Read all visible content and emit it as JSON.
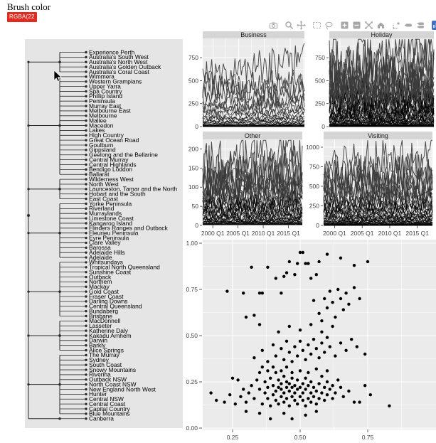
{
  "header": {
    "brush_label": "Brush color",
    "brush_value": "RGBA(22",
    "brush_color": "#e02b20"
  },
  "modebar": {
    "icon_color": "#a6a6a6",
    "logo_color": "#3d6fc9",
    "icons": [
      {
        "name": "camera",
        "title": "Download plot as png"
      },
      {
        "name": "zoom",
        "title": "Zoom"
      },
      {
        "name": "pan",
        "title": "Pan"
      },
      {
        "name": "box-select",
        "title": "Box Select"
      },
      {
        "name": "lasso-select",
        "title": "Lasso Select"
      },
      {
        "name": "zoom-in",
        "title": "Zoom in"
      },
      {
        "name": "zoom-out",
        "title": "Zoom out"
      },
      {
        "name": "autoscale",
        "title": "Autoscale"
      },
      {
        "name": "reset-axes",
        "title": "Reset axes"
      },
      {
        "name": "toggle-spikelines",
        "title": "Toggle Spike Lines"
      },
      {
        "name": "hover-closest",
        "title": "Show closest data on hover"
      },
      {
        "name": "hover-compare",
        "title": "Compare data on hover"
      },
      {
        "name": "plotly-logo",
        "title": "Produced with Plotly"
      }
    ]
  },
  "dendrogram": {
    "regions": [
      "Experience Perth",
      "Australia's South West",
      "Australia's North West",
      "Australia's Golden Outback",
      "Australia's Coral Coast",
      "Wimmera",
      "Western Grampians",
      "Upper Yarra",
      "Spa Country",
      "Phillip Island",
      "Peninsula",
      "Murray East",
      "Melbourne East",
      "Melbourne",
      "Mallee",
      "Macedon",
      "Lakes",
      "High Country",
      "Great Ocean Road",
      "Goulburn",
      "Gippsland",
      "Geelong and the Bellarine",
      "Central Murray",
      "Central Highlands",
      "Bendigo Loddon",
      "Ballarat",
      "Wilderness West",
      "North West",
      "Launceston, Tamar and the North",
      "Hobart and the South",
      "East Coast",
      "Yorke Peninsula",
      "Riverland",
      "Murraylands",
      "Limestone Coast",
      "Kangaroo Island",
      "Flinders Ranges and Outback",
      "Fleurieu Peninsula",
      "Eyre Peninsula",
      "Clare Valley",
      "Barossa",
      "Adelaide Hills",
      "Adelaide",
      "Whitsundays",
      "Tropical North Queensland",
      "Sunshine Coast",
      "Outback",
      "Northern",
      "Mackay",
      "Gold Coast",
      "Fraser Coast",
      "Darling Downs",
      "Central Queensland",
      "Bundaberg",
      "Brisbane",
      "MacDonnell",
      "Lasseter",
      "Katherine Daly",
      "Kakadu Arnhem",
      "Darwin",
      "Barkly",
      "Alice Springs",
      "The Murray",
      "Sydney",
      "South Coast",
      "Snowy Mountains",
      "Riverina",
      "Outback NSW",
      "North Coast NSW",
      "New England North West",
      "Hunter",
      "Central NSW",
      "Central Coast",
      "Capital Country",
      "Blue Mountains",
      "Canberra"
    ],
    "groups": [
      {
        "from": 0,
        "to": 4,
        "mid": 2
      },
      {
        "from": 5,
        "to": 25,
        "mid": 15
      },
      {
        "from": 26,
        "to": 30,
        "mid": 28
      },
      {
        "from": 31,
        "to": 42,
        "mid": 37
      },
      {
        "from": 43,
        "to": 54,
        "mid": 49
      },
      {
        "from": 55,
        "to": 61,
        "mid": 58
      },
      {
        "from": 62,
        "to": 74,
        "mid": 68
      }
    ],
    "single_leaf_index": 75
  },
  "chart_data": [
    {
      "type": "line",
      "title": "Business",
      "n_series": 76,
      "max_level": 700,
      "skew": 12,
      "amp": [
        0.55,
        0.5
      ],
      "ylim": [
        0,
        960
      ],
      "yticks": [
        0,
        250,
        500,
        750
      ],
      "xticks": [
        "2000 Q1",
        "2005 Q1",
        "2010 Q1",
        "2015 Q1"
      ],
      "show_xlabels": false,
      "seed": 11
    },
    {
      "type": "line",
      "title": "Holiday",
      "n_series": 76,
      "max_level": 920,
      "skew": 5,
      "amp": [
        0.35,
        0.75
      ],
      "ylim": [
        0,
        960
      ],
      "yticks": [
        0,
        250,
        500,
        750
      ],
      "xticks": [
        "2000 Q1",
        "2005 Q1",
        "2010 Q1",
        "2015 Q1"
      ],
      "show_xlabels": false,
      "seed": 22
    },
    {
      "type": "line",
      "title": "Other",
      "n_series": 76,
      "max_level": 205,
      "skew": 6,
      "amp": [
        0.45,
        0.6
      ],
      "ylim": [
        0,
        225
      ],
      "yticks": [
        0,
        50,
        100,
        150,
        200
      ],
      "xticks": [
        "2000 Q1",
        "2005 Q1",
        "2010 Q1",
        "2015 Q1"
      ],
      "show_xlabels": true,
      "seed": 33
    },
    {
      "type": "line",
      "title": "Visiting",
      "n_series": 76,
      "max_level": 950,
      "skew": 6,
      "amp": [
        0.45,
        0.6
      ],
      "ylim": [
        0,
        1100
      ],
      "yticks": [
        0,
        250,
        500,
        750,
        1000
      ],
      "xticks": [
        "2000 Q1",
        "2005 Q1",
        "2010 Q1",
        "2015 Q1"
      ],
      "show_xlabels": true,
      "seed": 44
    },
    {
      "type": "scatter",
      "title": "",
      "xticks": [
        0.25,
        0.5,
        0.75
      ],
      "yticks": [
        0.0,
        0.25,
        0.5,
        0.75,
        1.0
      ],
      "xlim": [
        0.14,
        1.0
      ],
      "ylim": [
        0.0,
        1.02
      ],
      "points": [
        [
          0.33,
          0.16
        ],
        [
          0.35,
          0.21
        ],
        [
          0.36,
          0.13
        ],
        [
          0.37,
          0.19
        ],
        [
          0.37,
          0.25
        ],
        [
          0.38,
          0.16
        ],
        [
          0.38,
          0.22
        ],
        [
          0.39,
          0.12
        ],
        [
          0.39,
          0.27
        ],
        [
          0.4,
          0.18
        ],
        [
          0.4,
          0.23
        ],
        [
          0.41,
          0.15
        ],
        [
          0.41,
          0.2
        ],
        [
          0.41,
          0.3
        ],
        [
          0.42,
          0.13
        ],
        [
          0.42,
          0.22
        ],
        [
          0.42,
          0.26
        ],
        [
          0.43,
          0.17
        ],
        [
          0.43,
          0.21
        ],
        [
          0.43,
          0.24
        ],
        [
          0.44,
          0.14
        ],
        [
          0.44,
          0.19
        ],
        [
          0.44,
          0.28
        ],
        [
          0.45,
          0.16
        ],
        [
          0.45,
          0.22
        ],
        [
          0.45,
          0.25
        ],
        [
          0.46,
          0.12
        ],
        [
          0.46,
          0.2
        ],
        [
          0.46,
          0.24
        ],
        [
          0.47,
          0.17
        ],
        [
          0.47,
          0.22
        ],
        [
          0.47,
          0.27
        ],
        [
          0.48,
          0.15
        ],
        [
          0.48,
          0.19
        ],
        [
          0.48,
          0.23
        ],
        [
          0.49,
          0.13
        ],
        [
          0.49,
          0.21
        ],
        [
          0.49,
          0.26
        ],
        [
          0.5,
          0.17
        ],
        [
          0.5,
          0.22
        ],
        [
          0.51,
          0.15
        ],
        [
          0.51,
          0.19
        ],
        [
          0.51,
          0.24
        ],
        [
          0.52,
          0.12
        ],
        [
          0.52,
          0.21
        ],
        [
          0.52,
          0.27
        ],
        [
          0.53,
          0.16
        ],
        [
          0.53,
          0.23
        ],
        [
          0.54,
          0.14
        ],
        [
          0.54,
          0.19
        ],
        [
          0.54,
          0.25
        ],
        [
          0.55,
          0.17
        ],
        [
          0.55,
          0.22
        ],
        [
          0.56,
          0.13
        ],
        [
          0.56,
          0.2
        ],
        [
          0.57,
          0.16
        ],
        [
          0.57,
          0.24
        ],
        [
          0.58,
          0.19
        ],
        [
          0.58,
          0.28
        ],
        [
          0.59,
          0.15
        ],
        [
          0.59,
          0.22
        ],
        [
          0.6,
          0.18
        ],
        [
          0.6,
          0.25
        ],
        [
          0.61,
          0.21
        ],
        [
          0.62,
          0.16
        ],
        [
          0.62,
          0.23
        ],
        [
          0.63,
          0.19
        ],
        [
          0.64,
          0.26
        ],
        [
          0.65,
          0.22
        ],
        [
          0.66,
          0.17
        ],
        [
          0.31,
          0.19
        ],
        [
          0.32,
          0.23
        ],
        [
          0.3,
          0.14
        ],
        [
          0.29,
          0.21
        ],
        [
          0.28,
          0.17
        ],
        [
          0.34,
          0.26
        ],
        [
          0.35,
          0.3
        ],
        [
          0.36,
          0.33
        ],
        [
          0.38,
          0.31
        ],
        [
          0.4,
          0.33
        ],
        [
          0.43,
          0.31
        ],
        [
          0.45,
          0.33
        ],
        [
          0.47,
          0.3
        ],
        [
          0.5,
          0.31
        ],
        [
          0.53,
          0.3
        ],
        [
          0.56,
          0.32
        ],
        [
          0.6,
          0.31
        ],
        [
          0.44,
          0.08
        ],
        [
          0.47,
          0.05
        ],
        [
          0.52,
          0.07
        ],
        [
          0.56,
          0.09
        ],
        [
          0.35,
          0.08
        ],
        [
          0.39,
          0.05
        ],
        [
          0.3,
          0.09
        ],
        [
          0.68,
          0.2
        ],
        [
          0.7,
          0.14
        ],
        [
          0.72,
          0.14
        ],
        [
          0.74,
          0.23
        ],
        [
          0.76,
          0.18
        ],
        [
          0.83,
          0.12
        ],
        [
          0.26,
          0.13
        ],
        [
          0.24,
          0.18
        ],
        [
          0.22,
          0.14
        ],
        [
          0.19,
          0.15
        ],
        [
          0.17,
          0.19
        ],
        [
          0.27,
          0.26
        ],
        [
          0.25,
          0.27
        ],
        [
          0.33,
          0.38
        ],
        [
          0.36,
          0.42
        ],
        [
          0.38,
          0.36
        ],
        [
          0.4,
          0.45
        ],
        [
          0.41,
          0.39
        ],
        [
          0.43,
          0.43
        ],
        [
          0.44,
          0.37
        ],
        [
          0.45,
          0.47
        ],
        [
          0.46,
          0.41
        ],
        [
          0.47,
          0.36
        ],
        [
          0.48,
          0.44
        ],
        [
          0.49,
          0.39
        ],
        [
          0.5,
          0.47
        ],
        [
          0.51,
          0.42
        ],
        [
          0.52,
          0.37
        ],
        [
          0.53,
          0.45
        ],
        [
          0.54,
          0.4
        ],
        [
          0.55,
          0.48
        ],
        [
          0.56,
          0.43
        ],
        [
          0.57,
          0.38
        ],
        [
          0.58,
          0.46
        ],
        [
          0.59,
          0.41
        ],
        [
          0.6,
          0.49
        ],
        [
          0.61,
          0.44
        ],
        [
          0.63,
          0.39
        ],
        [
          0.65,
          0.46
        ],
        [
          0.67,
          0.42
        ],
        [
          0.69,
          0.48
        ],
        [
          0.71,
          0.44
        ],
        [
          0.74,
          0.4
        ],
        [
          0.42,
          0.52
        ],
        [
          0.46,
          0.55
        ],
        [
          0.5,
          0.53
        ],
        [
          0.54,
          0.56
        ],
        [
          0.58,
          0.52
        ],
        [
          0.62,
          0.55
        ],
        [
          0.35,
          0.56
        ],
        [
          0.3,
          0.6
        ],
        [
          0.38,
          0.87
        ],
        [
          0.41,
          0.81
        ],
        [
          0.43,
          0.73
        ],
        [
          0.44,
          0.82
        ],
        [
          0.45,
          0.84
        ],
        [
          0.46,
          0.9
        ],
        [
          0.48,
          0.83
        ],
        [
          0.49,
          0.89
        ],
        [
          0.5,
          0.95
        ],
        [
          0.51,
          0.95
        ],
        [
          0.52,
          0.89
        ],
        [
          0.53,
          0.89
        ],
        [
          0.54,
          0.81
        ],
        [
          0.55,
          0.69
        ],
        [
          0.56,
          0.83
        ],
        [
          0.57,
          0.62
        ],
        [
          0.58,
          0.58
        ],
        [
          0.59,
          0.7
        ],
        [
          0.6,
          0.65
        ],
        [
          0.61,
          0.74
        ],
        [
          0.62,
          0.68
        ],
        [
          0.63,
          0.6
        ],
        [
          0.64,
          0.75
        ],
        [
          0.65,
          0.7
        ],
        [
          0.66,
          0.64
        ],
        [
          0.67,
          0.73
        ],
        [
          0.68,
          0.67
        ],
        [
          0.7,
          0.76
        ],
        [
          0.72,
          0.7
        ],
        [
          0.75,
          0.9
        ],
        [
          0.23,
          0.74
        ],
        [
          0.29,
          0.73
        ],
        [
          0.33,
          0.61
        ],
        [
          0.35,
          0.73
        ],
        [
          0.36,
          0.73
        ],
        [
          0.6,
          0.94
        ],
        [
          0.65,
          0.92
        ],
        [
          0.7,
          0.88
        ],
        [
          0.32,
          0.87
        ],
        [
          0.57,
          0.9
        ]
      ]
    }
  ],
  "theme": {
    "panel_bg": "#ebebeb",
    "strip_bg": "#d5d5d5",
    "grid": "#ffffff",
    "tick_text": "#444444",
    "strip_text": "#1a1a1a",
    "line_color": "#000000",
    "point_color": "#000000",
    "list_panel_bg": "#e5e5e5",
    "tree_color": "#2b2b2b"
  }
}
